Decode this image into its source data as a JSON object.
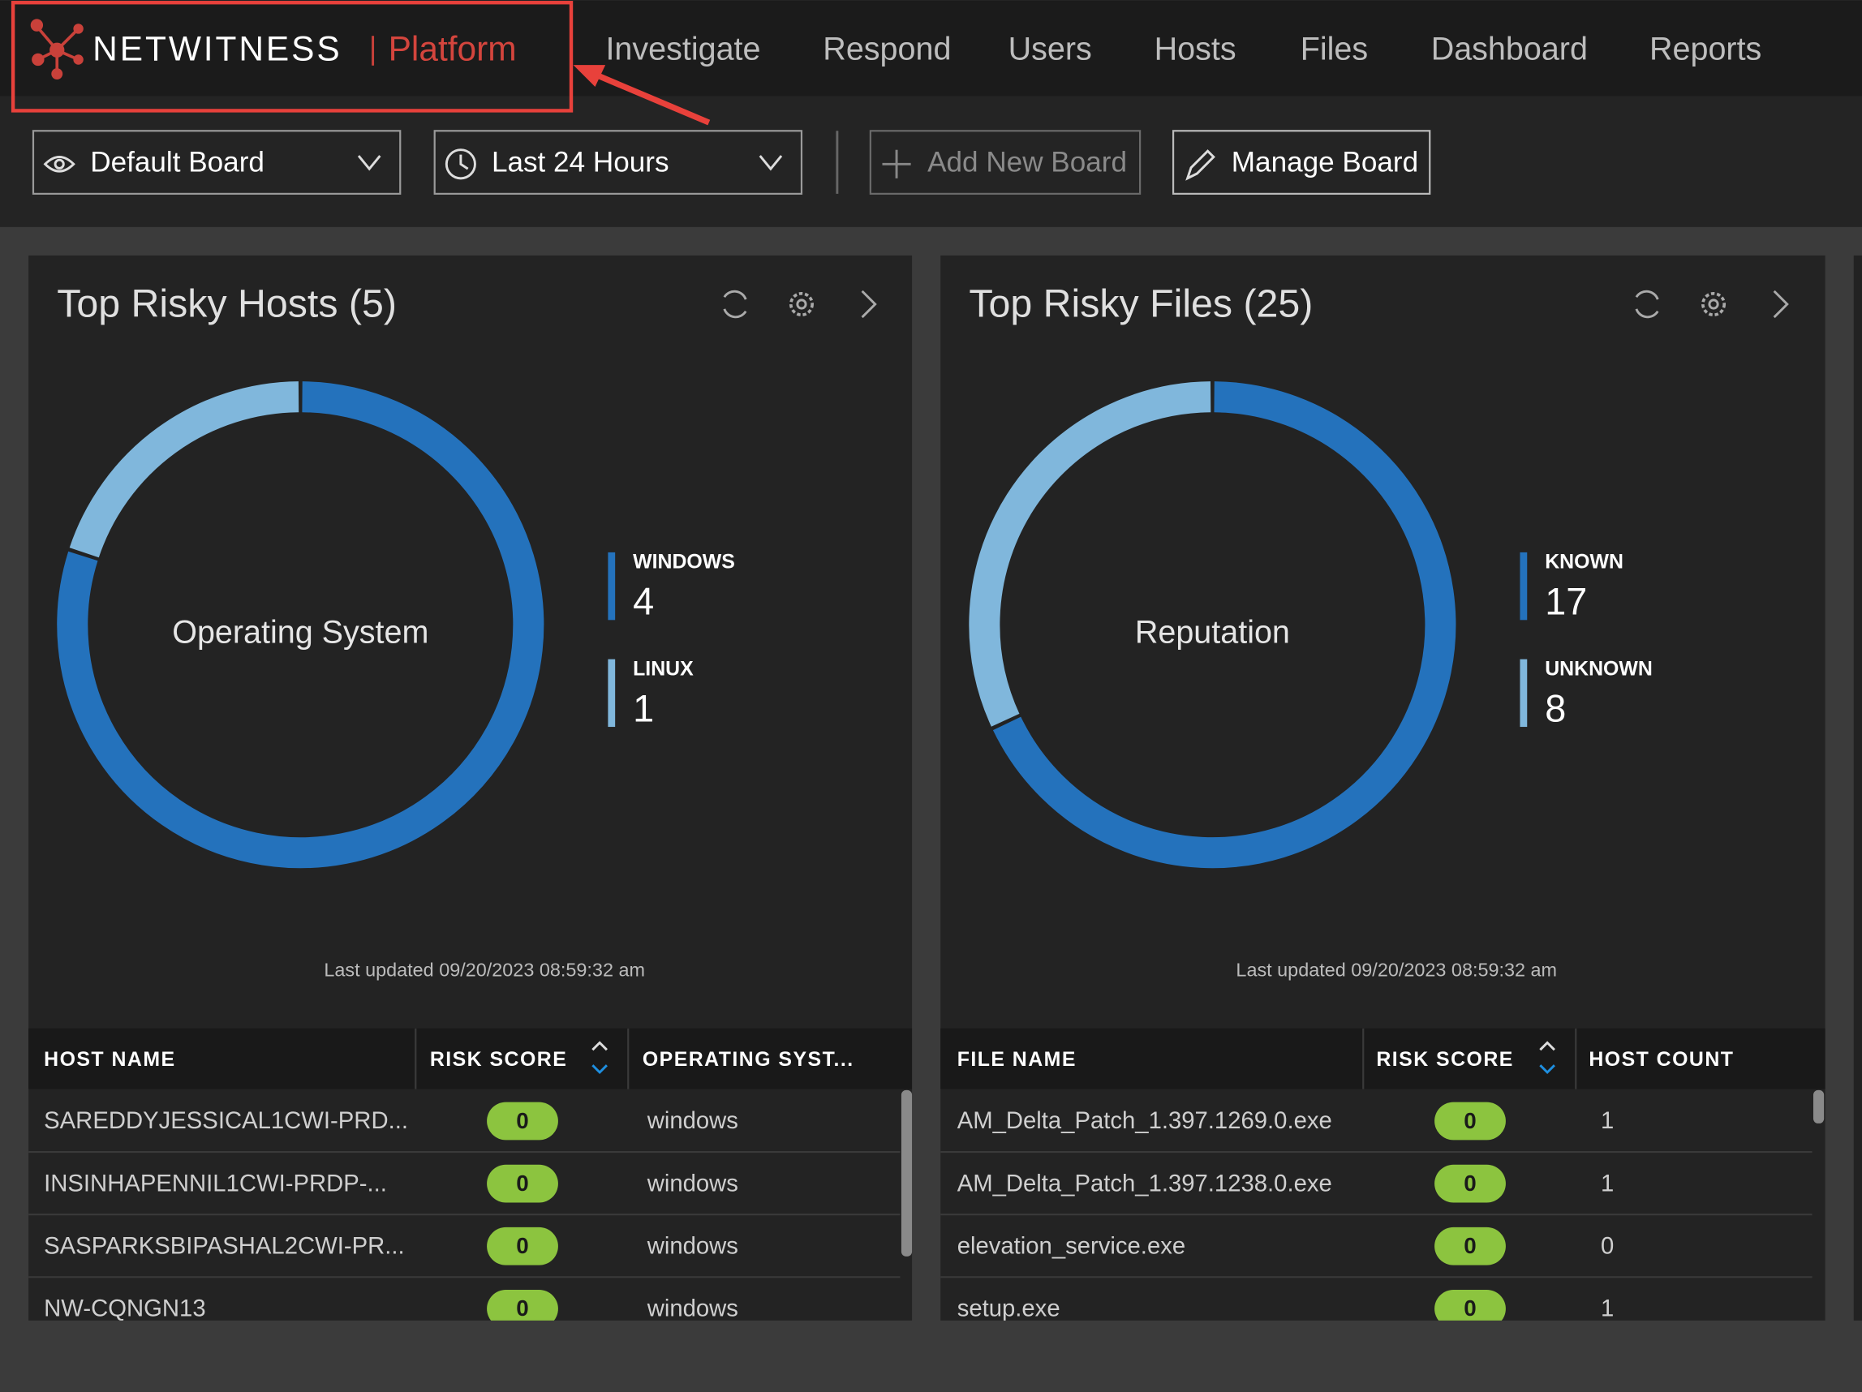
{
  "nav": {
    "brand": "NETWITNESS",
    "product": "Platform",
    "items": [
      "Investigate",
      "Respond",
      "Users",
      "Hosts",
      "Files",
      "Dashboard",
      "Reports"
    ]
  },
  "toolbar": {
    "board": "Default Board",
    "time_range": "Last 24 Hours",
    "add": "Add New Board",
    "manage": "Manage Board"
  },
  "widgets": [
    {
      "title": "Top Risky Hosts (5)",
      "center_label": "Operating System",
      "segments": [
        {
          "name": "WINDOWS",
          "value": 4,
          "color": "#2472bc"
        },
        {
          "name": "LINUX",
          "value": 1,
          "color": "#80b7dc"
        }
      ],
      "updated": "Last updated 09/20/2023 08:59:32 am",
      "columns": [
        "HOST NAME",
        "RISK SCORE",
        "OPERATING SYST..."
      ],
      "rows": [
        [
          "SAREDDYJESSICAL1CWI-PRD...",
          0,
          "windows"
        ],
        [
          "INSINHAPENNIL1CWI-PRDP-...",
          0,
          "windows"
        ],
        [
          "SASPARKSBIPASHAL2CWI-PR...",
          0,
          "windows"
        ],
        [
          "NW-CQNGN13",
          0,
          "windows"
        ]
      ]
    },
    {
      "title": "Top Risky Files (25)",
      "center_label": "Reputation",
      "segments": [
        {
          "name": "KNOWN",
          "value": 17,
          "color": "#2472bc"
        },
        {
          "name": "UNKNOWN",
          "value": 8,
          "color": "#80b7dc"
        }
      ],
      "updated": "Last updated 09/20/2023 08:59:32 am",
      "columns": [
        "FILE NAME",
        "RISK SCORE",
        "HOST COUNT"
      ],
      "rows": [
        [
          "AM_Delta_Patch_1.397.1269.0.exe",
          0,
          1
        ],
        [
          "AM_Delta_Patch_1.397.1238.0.exe",
          0,
          1
        ],
        [
          "elevation_service.exe",
          0,
          0
        ],
        [
          "setup.exe",
          0,
          1
        ]
      ]
    }
  ]
}
